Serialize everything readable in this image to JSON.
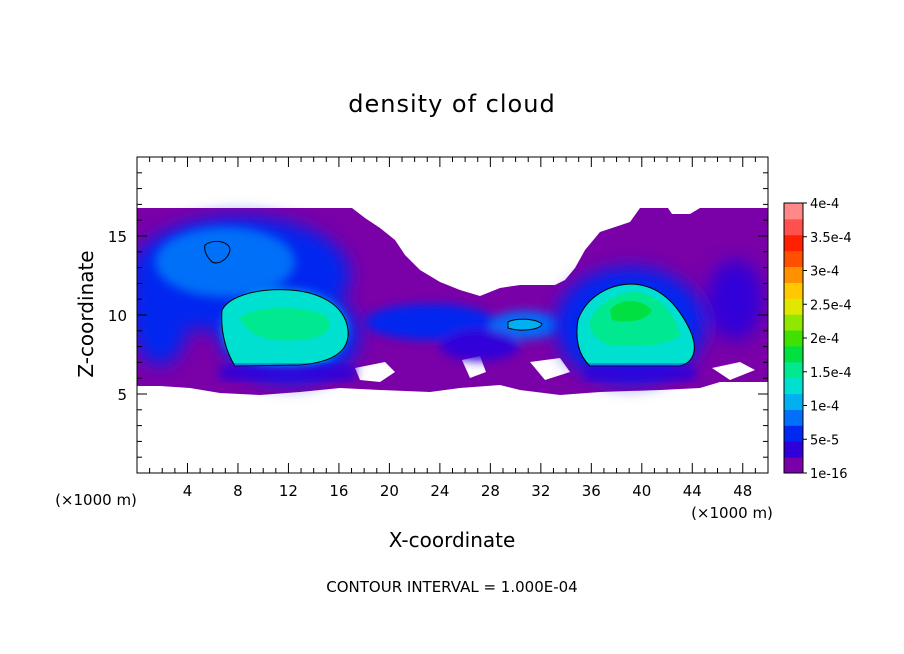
{
  "chart_data": {
    "type": "heatmap",
    "title": "density of cloud",
    "xlabel": "X-coordinate",
    "ylabel": "Z-coordinate",
    "x_unit_label": "(×1000 m)",
    "z_unit_label": "(×1000 m)",
    "footer": "CONTOUR INTERVAL = 1.000E-04",
    "xlim": [
      0,
      50
    ],
    "ylim": [
      0,
      20
    ],
    "x_ticks": [
      4,
      8,
      12,
      16,
      20,
      24,
      28,
      32,
      36,
      40,
      44,
      48
    ],
    "y_ticks": [
      5,
      10,
      15
    ],
    "colorbar": {
      "labels": [
        "1e-16",
        "5e-5",
        "1e-4",
        "1.5e-4",
        "2e-4",
        "2.5e-4",
        "3e-4",
        "3.5e-4",
        "4e-4"
      ],
      "colors": [
        "#7a00a8",
        "#3000d8",
        "#0028f0",
        "#0070f8",
        "#00b0f0",
        "#00e0d0",
        "#00e890",
        "#00e040",
        "#40e000",
        "#90e800",
        "#e0e800",
        "#ffc800",
        "#ff9000",
        "#ff5000",
        "#ff2000",
        "#ff5050",
        "#ff8888"
      ]
    },
    "contour_levels": [
      0.0001
    ],
    "features": [
      {
        "label": "main cloud left",
        "x_range": [
          6.5,
          17
        ],
        "z_range": [
          6.5,
          11.5
        ],
        "peak": 0.00019
      },
      {
        "label": "main cloud right",
        "x_range": [
          35,
          44.5
        ],
        "z_range": [
          6.5,
          12
        ],
        "peak": 0.00021
      },
      {
        "label": "upper left cell",
        "x_range": [
          5.5,
          7.5
        ],
        "z_range": [
          13,
          14.5
        ],
        "peak": 0.00011
      },
      {
        "label": "small mid cell",
        "x_range": [
          29,
          32
        ],
        "z_range": [
          9.2,
          9.8
        ],
        "peak": 0.00011
      }
    ],
    "cloud_layer_z_range": [
      5.5,
      16.7
    ]
  }
}
